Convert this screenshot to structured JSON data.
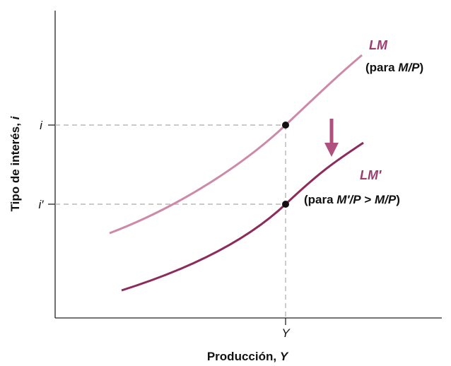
{
  "axes": {
    "y_label": [
      "Tipo de interés, ",
      "i"
    ],
    "x_label": [
      "Producción, ",
      "Y"
    ]
  },
  "ticks": {
    "i": "i",
    "i_prime": "i′",
    "Y": "Y"
  },
  "curves": [
    {
      "name": "LM",
      "note": [
        "(para ",
        "M/P",
        ")"
      ]
    },
    {
      "name": "LM′",
      "note": [
        "(para ",
        "M′/P",
        " > ",
        "M/P",
        ")"
      ]
    }
  ]
}
